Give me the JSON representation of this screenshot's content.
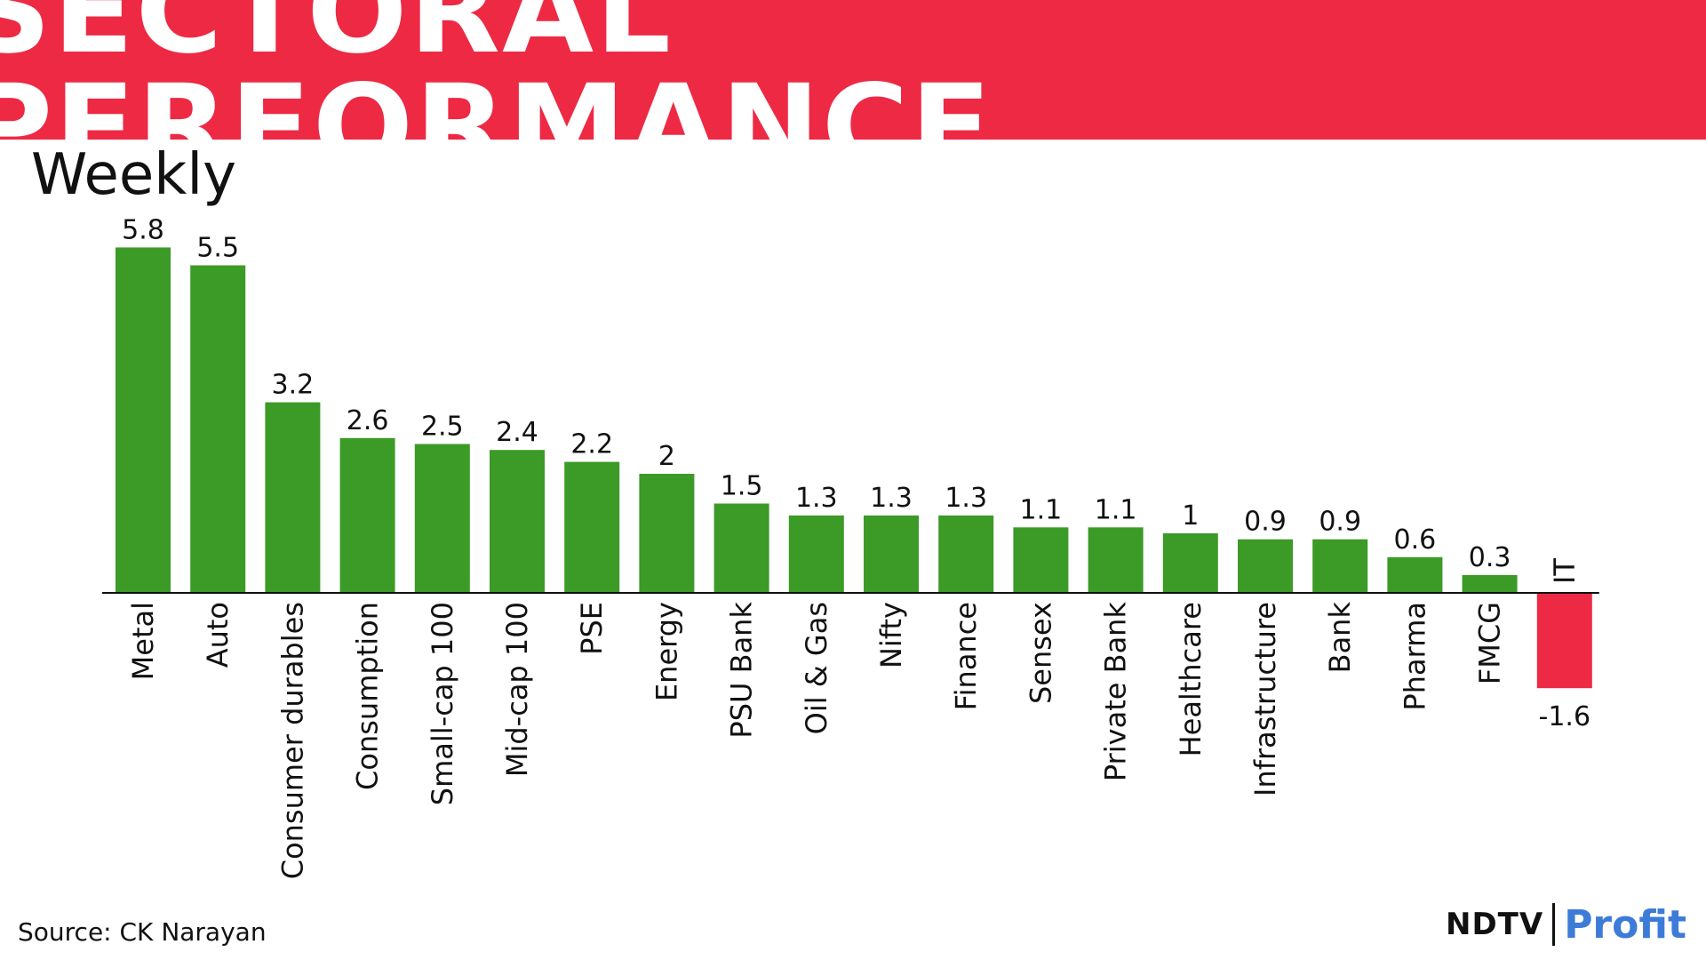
{
  "banner": {
    "title": "SECTORAL PERFORMANCE"
  },
  "subtitle": "Weekly",
  "source": "Source: CK Narayan",
  "logo": {
    "left": "NDTV",
    "right": "Profit"
  },
  "colors": {
    "banner": "#ee2944",
    "positive": "#3c9a26",
    "negative": "#ee2944",
    "axis": "#111111"
  },
  "chart_data": {
    "type": "bar",
    "title": "SECTORAL PERFORMANCE",
    "subtitle": "Weekly",
    "xlabel": "",
    "ylabel": "",
    "grid": false,
    "legend": "none",
    "ylim": [
      -1.6,
      5.8
    ],
    "categories": [
      "Metal",
      "Auto",
      "Consumer durables",
      "Consumption",
      "Small-cap 100",
      "Mid-cap 100",
      "PSE",
      "Energy",
      "PSU Bank",
      "Oil & Gas",
      "Nifty",
      "Finance",
      "Sensex",
      "Private Bank",
      "Healthcare",
      "Infrastructure",
      "Bank",
      "Pharma",
      "FMCG",
      "IT"
    ],
    "values": [
      5.8,
      5.5,
      3.2,
      2.6,
      2.5,
      2.4,
      2.2,
      2,
      1.5,
      1.3,
      1.3,
      1.3,
      1.1,
      1.1,
      1,
      0.9,
      0.9,
      0.6,
      0.3,
      -1.6
    ],
    "value_labels": [
      "5.8",
      "5.5",
      "3.2",
      "2.6",
      "2.5",
      "2.4",
      "2.2",
      "2",
      "1.5",
      "1.3",
      "1.3",
      "1.3",
      "1.1",
      "1.1",
      "1",
      "0.9",
      "0.9",
      "0.6",
      "0.3",
      "-1.6"
    ]
  }
}
